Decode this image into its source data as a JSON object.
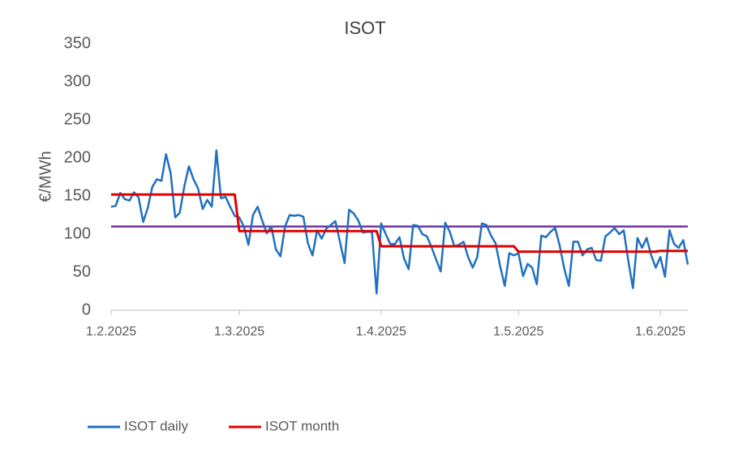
{
  "chart_data": {
    "type": "line",
    "title": "ISOT",
    "y_label": "€/MWh",
    "x": [
      "1.2.2025",
      "2.2.2025",
      "3.2.2025",
      "4.2.2025",
      "5.2.2025",
      "6.2.2025",
      "7.2.2025",
      "8.2.2025",
      "9.2.2025",
      "10.2.2025",
      "11.2.2025",
      "12.2.2025",
      "13.2.2025",
      "14.2.2025",
      "15.2.2025",
      "16.2.2025",
      "17.2.2025",
      "18.2.2025",
      "19.2.2025",
      "20.2.2025",
      "21.2.2025",
      "22.2.2025",
      "23.2.2025",
      "24.2.2025",
      "25.2.2025",
      "26.2.2025",
      "27.2.2025",
      "28.2.2025",
      "1.3.2025",
      "2.3.2025",
      "3.3.2025",
      "4.3.2025",
      "5.3.2025",
      "6.3.2025",
      "7.3.2025",
      "8.3.2025",
      "9.3.2025",
      "10.3.2025",
      "11.3.2025",
      "12.3.2025",
      "13.3.2025",
      "14.3.2025",
      "15.3.2025",
      "16.3.2025",
      "17.3.2025",
      "18.3.2025",
      "19.3.2025",
      "20.3.2025",
      "21.3.2025",
      "22.3.2025",
      "23.3.2025",
      "24.3.2025",
      "25.3.2025",
      "26.3.2025",
      "27.3.2025",
      "28.3.2025",
      "29.3.2025",
      "30.3.2025",
      "31.3.2025",
      "1.4.2025",
      "2.4.2025",
      "3.4.2025",
      "4.4.2025",
      "5.4.2025",
      "6.4.2025",
      "7.4.2025",
      "8.4.2025",
      "9.4.2025",
      "10.4.2025",
      "11.4.2025",
      "12.4.2025",
      "13.4.2025",
      "14.4.2025",
      "15.4.2025",
      "16.4.2025",
      "17.4.2025",
      "18.4.2025",
      "19.4.2025",
      "20.4.2025",
      "21.4.2025",
      "22.4.2025",
      "23.4.2025",
      "24.4.2025",
      "25.4.2025",
      "26.4.2025",
      "27.4.2025",
      "28.4.2025",
      "29.4.2025",
      "30.4.2025",
      "1.5.2025",
      "2.5.2025",
      "3.5.2025",
      "4.5.2025",
      "5.5.2025",
      "6.5.2025",
      "7.5.2025",
      "8.5.2025",
      "9.5.2025",
      "10.5.2025",
      "11.5.2025",
      "12.5.2025",
      "13.5.2025",
      "14.5.2025",
      "15.5.2025",
      "16.5.2025",
      "17.5.2025",
      "18.5.2025",
      "19.5.2025",
      "20.5.2025",
      "21.5.2025",
      "22.5.2025",
      "23.5.2025",
      "24.5.2025",
      "25.5.2025",
      "26.5.2025",
      "27.5.2025",
      "28.5.2025",
      "29.5.2025",
      "30.5.2025",
      "31.5.2025",
      "1.6.2025",
      "2.6.2025",
      "3.6.2025",
      "4.6.2025",
      "5.6.2025",
      "6.6.2025",
      "7.6.2025"
    ],
    "series": [
      {
        "name": "ISOT daily",
        "color": "#2070c0",
        "values": [
          136,
          137,
          154,
          146,
          144,
          155,
          148,
          116,
          134,
          162,
          172,
          170,
          205,
          180,
          122,
          128,
          163,
          189,
          172,
          160,
          133,
          145,
          136,
          210,
          147,
          149,
          136,
          124,
          122,
          110,
          86,
          125,
          136,
          118,
          101,
          110,
          80,
          71,
          110,
          125,
          124,
          125,
          123,
          88,
          72,
          105,
          94,
          107,
          112,
          117,
          90,
          62,
          132,
          127,
          118,
          102,
          103,
          103,
          22,
          114,
          100,
          87,
          87,
          96,
          68,
          54,
          112,
          111,
          100,
          97,
          83,
          67,
          51,
          115,
          103,
          84,
          86,
          90,
          70,
          56,
          70,
          114,
          112,
          98,
          88,
          58,
          32,
          75,
          72,
          75,
          45,
          61,
          56,
          34,
          98,
          96,
          103,
          108,
          85,
          55,
          32,
          90,
          90,
          72,
          80,
          82,
          66,
          65,
          97,
          102,
          108,
          100,
          105,
          65,
          29,
          95,
          82,
          95,
          72,
          56,
          70,
          44,
          105,
          87,
          82,
          92,
          60
        ]
      },
      {
        "name": "ISOT month",
        "color": "#e00000",
        "values": [
          152,
          152,
          152,
          152,
          152,
          152,
          152,
          152,
          152,
          152,
          152,
          152,
          152,
          152,
          152,
          152,
          152,
          152,
          152,
          152,
          152,
          152,
          152,
          152,
          152,
          152,
          152,
          152,
          104,
          104,
          104,
          104,
          104,
          104,
          104,
          104,
          104,
          104,
          104,
          104,
          104,
          104,
          104,
          104,
          104,
          104,
          104,
          104,
          104,
          104,
          104,
          104,
          104,
          104,
          104,
          104,
          104,
          104,
          104,
          84,
          84,
          84,
          84,
          84,
          84,
          84,
          84,
          84,
          84,
          84,
          84,
          84,
          84,
          84,
          84,
          84,
          84,
          84,
          84,
          84,
          84,
          84,
          84,
          84,
          84,
          84,
          84,
          84,
          84,
          77,
          77,
          77,
          77,
          77,
          77,
          77,
          77,
          77,
          77,
          77,
          77,
          77,
          77,
          77,
          77,
          77,
          77,
          77,
          77,
          77,
          77,
          77,
          77,
          77,
          77,
          77,
          77,
          77,
          77,
          77,
          78,
          78,
          78,
          78,
          78,
          78,
          78
        ]
      }
    ],
    "reference_line": {
      "value": 110,
      "color": "#7030a0"
    },
    "xlim": [
      "1.2.2025",
      "7.6.2025"
    ],
    "xticks": [
      "1.2.2025",
      "1.3.2025",
      "1.4.2025",
      "1.5.2025",
      "1.6.2025"
    ],
    "ylim": [
      0,
      350
    ],
    "yticks": [
      0,
      50,
      100,
      150,
      200,
      250,
      300,
      350
    ],
    "legend": "bottom"
  }
}
